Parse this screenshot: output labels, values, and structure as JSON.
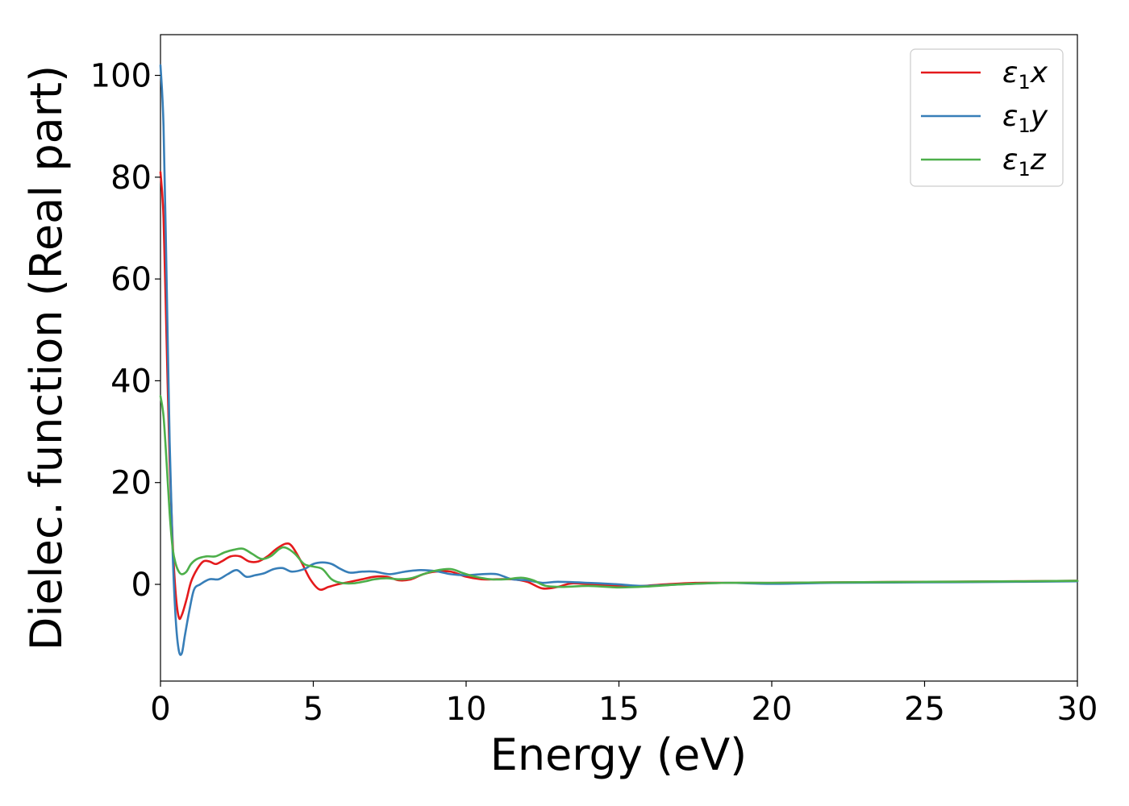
{
  "chart_data": {
    "type": "line",
    "title": "",
    "xlabel": "Energy (eV)",
    "ylabel": "Dielec. function (Real part)",
    "xlim": [
      0,
      30
    ],
    "ylim": [
      -19,
      108
    ],
    "xticks": [
      0,
      5,
      10,
      15,
      20,
      25,
      30
    ],
    "yticks": [
      0,
      20,
      40,
      60,
      80,
      100
    ],
    "grid": false,
    "legend_position": "top-right",
    "series": [
      {
        "name": "ε1x",
        "symbol": "ε",
        "sub": "1",
        "axis": "x",
        "color": "#e41a1c",
        "points": [
          [
            0,
            81
          ],
          [
            0.1,
            72
          ],
          [
            0.2,
            48
          ],
          [
            0.3,
            24
          ],
          [
            0.4,
            8
          ],
          [
            0.5,
            -2
          ],
          [
            0.6,
            -6.5
          ],
          [
            0.7,
            -6
          ],
          [
            0.85,
            -3
          ],
          [
            1.0,
            0.5
          ],
          [
            1.2,
            3
          ],
          [
            1.4,
            4.5
          ],
          [
            1.6,
            4.5
          ],
          [
            1.8,
            4
          ],
          [
            2.0,
            4.5
          ],
          [
            2.3,
            5.5
          ],
          [
            2.6,
            5.5
          ],
          [
            2.9,
            4.5
          ],
          [
            3.2,
            4.5
          ],
          [
            3.5,
            5.5
          ],
          [
            3.8,
            7
          ],
          [
            4.1,
            8
          ],
          [
            4.3,
            7.5
          ],
          [
            4.6,
            4.5
          ],
          [
            4.9,
            1
          ],
          [
            5.2,
            -1
          ],
          [
            5.5,
            -0.5
          ],
          [
            5.8,
            0
          ],
          [
            6.2,
            0.5
          ],
          [
            6.6,
            1
          ],
          [
            7.0,
            1.5
          ],
          [
            7.4,
            1.5
          ],
          [
            7.8,
            0.8
          ],
          [
            8.2,
            1
          ],
          [
            8.6,
            2
          ],
          [
            9.0,
            2.5
          ],
          [
            9.5,
            2.5
          ],
          [
            10.0,
            1.5
          ],
          [
            10.5,
            1
          ],
          [
            11.0,
            1
          ],
          [
            11.5,
            1
          ],
          [
            12.0,
            0.5
          ],
          [
            12.5,
            -0.8
          ],
          [
            13.0,
            -0.5
          ],
          [
            13.5,
            0.2
          ],
          [
            14.5,
            -0.2
          ],
          [
            15.5,
            -0.4
          ],
          [
            16.5,
            0
          ],
          [
            17.5,
            0.3
          ],
          [
            18.5,
            0.3
          ],
          [
            20,
            0.3
          ],
          [
            22,
            0.4
          ],
          [
            25,
            0.5
          ],
          [
            28,
            0.6
          ],
          [
            30,
            0.7
          ]
        ]
      },
      {
        "name": "ε1y",
        "symbol": "ε",
        "sub": "1",
        "axis": "y",
        "color": "#377eb8",
        "points": [
          [
            0,
            102
          ],
          [
            0.1,
            90
          ],
          [
            0.2,
            60
          ],
          [
            0.3,
            28
          ],
          [
            0.4,
            6
          ],
          [
            0.5,
            -7
          ],
          [
            0.6,
            -13
          ],
          [
            0.7,
            -13.5
          ],
          [
            0.8,
            -10
          ],
          [
            0.95,
            -5
          ],
          [
            1.1,
            -1
          ],
          [
            1.3,
            0
          ],
          [
            1.6,
            1
          ],
          [
            1.9,
            1
          ],
          [
            2.2,
            2
          ],
          [
            2.5,
            2.8
          ],
          [
            2.8,
            1.5
          ],
          [
            3.1,
            1.8
          ],
          [
            3.4,
            2.2
          ],
          [
            3.7,
            3
          ],
          [
            4.0,
            3.2
          ],
          [
            4.3,
            2.5
          ],
          [
            4.7,
            3
          ],
          [
            5.0,
            4
          ],
          [
            5.3,
            4.3
          ],
          [
            5.6,
            4
          ],
          [
            5.9,
            3
          ],
          [
            6.2,
            2.3
          ],
          [
            6.6,
            2.5
          ],
          [
            7.0,
            2.5
          ],
          [
            7.5,
            2
          ],
          [
            8.0,
            2.5
          ],
          [
            8.5,
            2.8
          ],
          [
            9.0,
            2.6
          ],
          [
            9.5,
            2
          ],
          [
            10.0,
            1.8
          ],
          [
            10.5,
            2
          ],
          [
            11.0,
            2
          ],
          [
            11.5,
            1
          ],
          [
            12.0,
            0.8
          ],
          [
            12.5,
            0.3
          ],
          [
            13.0,
            0.5
          ],
          [
            14.0,
            0.3
          ],
          [
            15.0,
            0
          ],
          [
            15.8,
            -0.3
          ],
          [
            17.0,
            0
          ],
          [
            18.5,
            0.3
          ],
          [
            20,
            0.1
          ],
          [
            22,
            0.3
          ],
          [
            25,
            0.4
          ],
          [
            28,
            0.5
          ],
          [
            30,
            0.6
          ]
        ]
      },
      {
        "name": "ε1z",
        "symbol": "ε",
        "sub": "1",
        "axis": "z",
        "color": "#4daf4a",
        "points": [
          [
            0,
            37
          ],
          [
            0.1,
            33
          ],
          [
            0.2,
            24
          ],
          [
            0.3,
            14
          ],
          [
            0.4,
            7
          ],
          [
            0.5,
            4
          ],
          [
            0.6,
            2.5
          ],
          [
            0.7,
            2
          ],
          [
            0.85,
            2.5
          ],
          [
            1.0,
            4
          ],
          [
            1.2,
            5
          ],
          [
            1.5,
            5.5
          ],
          [
            1.8,
            5.5
          ],
          [
            2.1,
            6.3
          ],
          [
            2.4,
            6.8
          ],
          [
            2.7,
            7
          ],
          [
            3.0,
            6
          ],
          [
            3.3,
            5
          ],
          [
            3.6,
            5.5
          ],
          [
            3.9,
            7
          ],
          [
            4.1,
            7.2
          ],
          [
            4.4,
            6
          ],
          [
            4.7,
            4
          ],
          [
            5.0,
            3.5
          ],
          [
            5.3,
            3
          ],
          [
            5.6,
            1
          ],
          [
            5.9,
            0.3
          ],
          [
            6.3,
            0.2
          ],
          [
            6.7,
            0.6
          ],
          [
            7.0,
            1
          ],
          [
            7.4,
            1.2
          ],
          [
            7.8,
            1
          ],
          [
            8.2,
            1.2
          ],
          [
            8.6,
            2
          ],
          [
            9.0,
            2.7
          ],
          [
            9.5,
            3
          ],
          [
            9.9,
            2.2
          ],
          [
            10.3,
            1.5
          ],
          [
            10.8,
            1
          ],
          [
            11.3,
            1
          ],
          [
            11.8,
            1.3
          ],
          [
            12.2,
            0.8
          ],
          [
            12.6,
            -0.3
          ],
          [
            13.2,
            -0.5
          ],
          [
            14.0,
            -0.3
          ],
          [
            15.0,
            -0.6
          ],
          [
            16.0,
            -0.4
          ],
          [
            17.0,
            0
          ],
          [
            18.5,
            0.3
          ],
          [
            20,
            0.3
          ],
          [
            22,
            0.4
          ],
          [
            25,
            0.5
          ],
          [
            28,
            0.6
          ],
          [
            30,
            0.7
          ]
        ]
      }
    ]
  }
}
